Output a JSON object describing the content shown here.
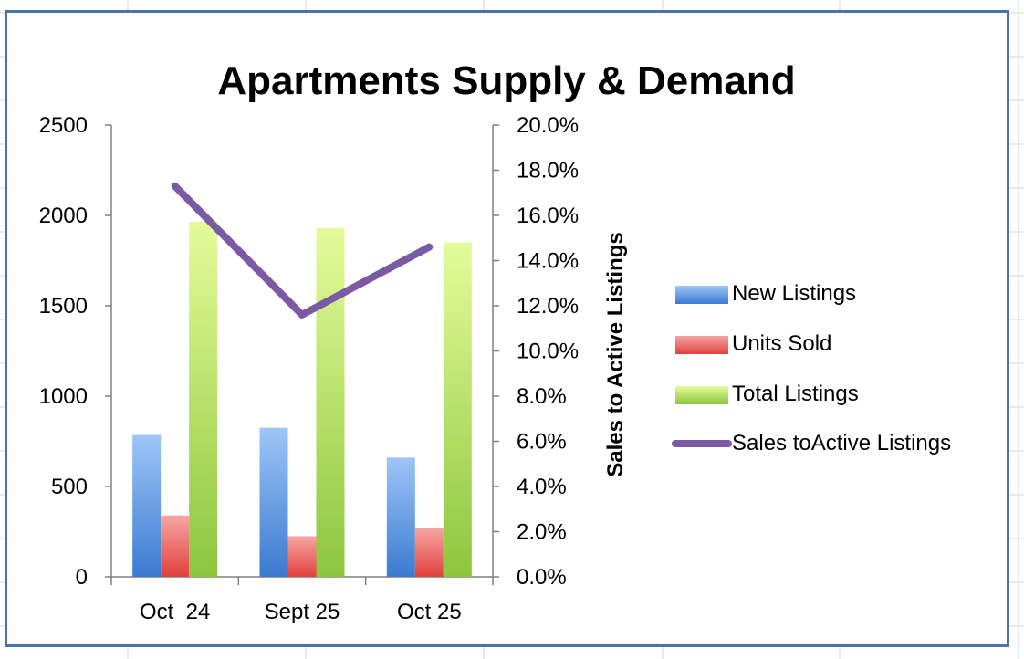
{
  "colors": {
    "new_listings": "#5b9bd5",
    "units_sold": "#e8585b",
    "total_listings": "#a5d255",
    "sales_ratio": "#7a5aa3",
    "frame": "#4a72ad",
    "axis": "#808080"
  },
  "chart_data": {
    "type": "bar",
    "title": "Apartments Supply & Demand",
    "categories": [
      "Oct  24",
      "Sept 25",
      "Oct 25"
    ],
    "series": [
      {
        "name": "New Listings",
        "type": "bar",
        "axis": "left",
        "color": "#5b9bd5",
        "values": [
          785,
          825,
          660
        ]
      },
      {
        "name": "Units Sold",
        "type": "bar",
        "axis": "left",
        "color": "#e8585b",
        "values": [
          340,
          225,
          270
        ]
      },
      {
        "name": "Total Listings",
        "type": "bar",
        "axis": "left",
        "color": "#a5d255",
        "values": [
          1965,
          1930,
          1850
        ]
      },
      {
        "name": "Sales toActive Listings",
        "type": "line",
        "axis": "right",
        "color": "#7a5aa3",
        "values": [
          17.3,
          11.6,
          14.6
        ]
      }
    ],
    "left_axis": {
      "label": "",
      "ylim": [
        0,
        2500
      ],
      "ticks": [
        "0",
        "500",
        "1000",
        "1500",
        "2000",
        "2500"
      ]
    },
    "right_axis": {
      "label": "Sales to Active Listings",
      "ylim": [
        0,
        20
      ],
      "ticks": [
        "0.0%",
        "2.0%",
        "4.0%",
        "6.0%",
        "8.0%",
        "10.0%",
        "12.0%",
        "14.0%",
        "16.0%",
        "18.0%",
        "20.0%"
      ]
    },
    "grid": false,
    "legend_position": "right"
  }
}
